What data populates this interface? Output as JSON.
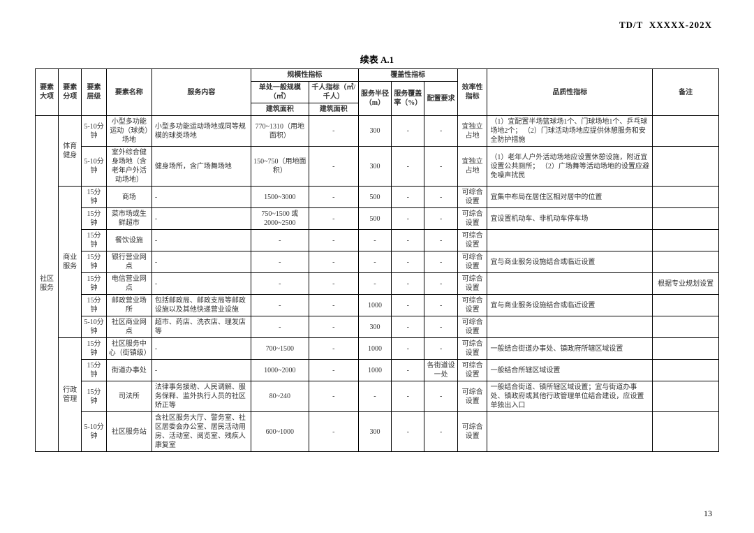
{
  "doc_id": "TD/T  XXXXX-202X",
  "table_title": "续表 A.1",
  "page_num": "13",
  "headers": {
    "major": "要素大项",
    "sub": "要素分项",
    "level": "要素层级",
    "name": "要素名称",
    "content": "服务内容",
    "scale_group": "规模性指标",
    "scale_single": "单处一般规模（㎡）",
    "scale_thousand": "千人指标（㎡/千人）",
    "scale_area": "建筑面积",
    "scale_area2": "建筑面积",
    "coverage_group": "覆盖性指标",
    "radius": "服务半径（m）",
    "coverage_rate": "服务覆盖率（%）",
    "config": "配置要求",
    "eff": "效率性指标",
    "quality": "品质性指标",
    "remark": "备注"
  },
  "major": "社区服务",
  "groups": [
    {
      "sub": "体育健身",
      "rows": [
        {
          "level": "5-10分钟",
          "name": "小型多功能运动（球类）场地",
          "content": "小型多功能运动场地或同等规模的球类场地",
          "scale": "770~1310（用地面积）",
          "thousand": "-",
          "radius": "300",
          "coverage": "-",
          "config": "-",
          "eff": "宜独立占地",
          "quality": "（1）宜配置半场篮球场1个、门球场地1个、乒乓球场地2个；\n（2）门球活动场地应提供休憩服务和安全防护措施",
          "remark": ""
        },
        {
          "level": "5-10分钟",
          "name": "室外综合健身场地（含老年户外活动场地）",
          "content": "健身场所，含广场舞场地",
          "scale": "150~750（用地面积）",
          "thousand": "-",
          "radius": "300",
          "coverage": "-",
          "config": "-",
          "eff": "宜独立占地",
          "quality": "（1）老年人户外活动场地应设置休憩设施，附近宜设置公共厕所；\n（2）广场舞等活动场地的设置应避免噪声扰民",
          "remark": ""
        }
      ]
    },
    {
      "sub": "商业服务",
      "rows": [
        {
          "level": "15分钟",
          "name": "商场",
          "content": "-",
          "scale": "1500~3000",
          "thousand": "-",
          "radius": "500",
          "coverage": "-",
          "config": "-",
          "eff": "可综合设置",
          "quality": "宜集中布局在居住区相对居中的位置",
          "remark": ""
        },
        {
          "level": "15分钟",
          "name": "菜市场或生鲜超市",
          "content": "-",
          "scale": "750~1500 或 2000~2500",
          "thousand": "-",
          "radius": "500",
          "coverage": "-",
          "config": "-",
          "eff": "可综合设置",
          "quality": "宜设置机动车、非机动车停车场",
          "remark": ""
        },
        {
          "level": "15分钟",
          "name": "餐饮设施",
          "content": "-",
          "scale": "-",
          "thousand": "-",
          "radius": "-",
          "coverage": "-",
          "config": "-",
          "eff": "可综合设置",
          "quality": "",
          "remark": ""
        },
        {
          "level": "15分钟",
          "name": "银行营业网点",
          "content": "-",
          "scale": "-",
          "thousand": "-",
          "radius": "-",
          "coverage": "-",
          "config": "-",
          "eff": "可综合设置",
          "quality": "宜与商业服务设施结合或临近设置",
          "remark": ""
        },
        {
          "level": "15分钟",
          "name": "电信营业网点",
          "content": "-",
          "scale": "-",
          "thousand": "-",
          "radius": "-",
          "coverage": "-",
          "config": "-",
          "eff": "可综合设置",
          "quality": "",
          "remark": "根据专业规划设置"
        },
        {
          "level": "15分钟",
          "name": "邮政营业场所",
          "content": "包括邮政局、邮政支局等邮政设施以及其他快递营业设施",
          "scale": "-",
          "thousand": "-",
          "radius": "1000",
          "coverage": "-",
          "config": "-",
          "eff": "可综合设置",
          "quality": "宜与商业服务设施结合或临近设置",
          "remark": ""
        },
        {
          "level": "5-10分钟",
          "name": "社区商业网点",
          "content": "超市、药店、洗衣店、理发店等",
          "scale": "-",
          "thousand": "-",
          "radius": "300",
          "coverage": "-",
          "config": "-",
          "eff": "可综合设置",
          "quality": "",
          "remark": ""
        }
      ]
    },
    {
      "sub": "行政管理",
      "rows": [
        {
          "level": "15分钟",
          "name": "社区服务中心（街镇级）",
          "content": "-",
          "scale": "700~1500",
          "thousand": "-",
          "radius": "1000",
          "coverage": "-",
          "config": "-",
          "eff": "可综合设置",
          "quality": "一般结合街道办事处、镇政府所辖区域设置",
          "remark": ""
        },
        {
          "level": "15分钟",
          "name": "街道办事处",
          "content": "-",
          "scale": "1000~2000",
          "thousand": "-",
          "radius": "1000",
          "coverage": "-",
          "config": "各街道设一处",
          "eff": "可综合设置",
          "quality": "一般结合所辖区域设置",
          "remark": ""
        },
        {
          "level": "15分钟",
          "name": "司法所",
          "content": "法律事务援助、人民调解、服务保释、监外执行人员的社区矫正等",
          "scale": "80~240",
          "thousand": "-",
          "radius": "-",
          "coverage": "-",
          "config": "-",
          "eff": "可综合设置",
          "quality": "一般结合街道、镇所辖区域设置；宜与街道办事处、镇政府或其他行政管理单位结合建设，应设置单独出入口",
          "remark": ""
        },
        {
          "level": "5-10分钟",
          "name": "社区服务站",
          "content": "含社区服务大厅、警务室、社区居委会办公室、居民活动用房、活动室、阅览室、残疾人康复室",
          "scale": "600~1000",
          "thousand": "-",
          "radius": "300",
          "coverage": "-",
          "config": "-",
          "eff": "可综合设置",
          "quality": "",
          "remark": ""
        }
      ]
    }
  ]
}
